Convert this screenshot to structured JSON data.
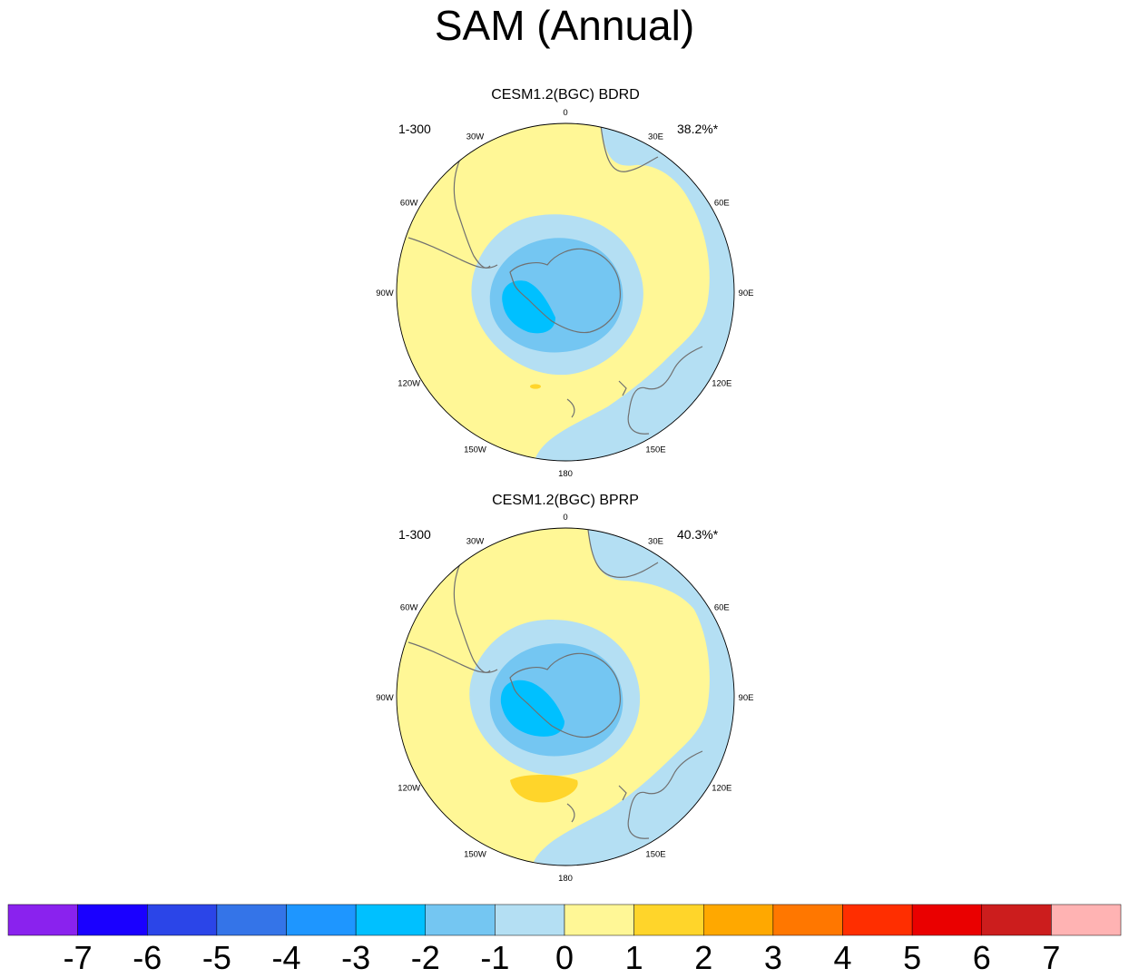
{
  "title": "SAM (Annual)",
  "panels": [
    {
      "title": "CESM1.2(BGC) BDRD",
      "left_label": "1-300",
      "right_label": "38.2%*",
      "lon_labels": [
        "0",
        "30E",
        "60E",
        "90E",
        "120E",
        "150E",
        "180",
        "150W",
        "120W",
        "90W",
        "60W",
        "30W"
      ],
      "positive_blob": "small"
    },
    {
      "title": "CESM1.2(BGC) BPRP",
      "left_label": "1-300",
      "right_label": "40.3%*",
      "lon_labels": [
        "0",
        "30E",
        "60E",
        "90E",
        "120E",
        "150E",
        "180",
        "150W",
        "120W",
        "90W",
        "60W",
        "30W"
      ],
      "positive_blob": "large"
    }
  ],
  "colorbar": {
    "levels": [
      "-7",
      "-6",
      "-5",
      "-4",
      "-3",
      "-2",
      "-1",
      "0",
      "1",
      "2",
      "3",
      "4",
      "5",
      "6",
      "7"
    ],
    "colors": [
      "#8a22ee",
      "#1a00ff",
      "#2b45e8",
      "#3474e8",
      "#1e96ff",
      "#00c0ff",
      "#74c6f2",
      "#b4dff3",
      "#fff796",
      "#ffd52a",
      "#ffa800",
      "#ff7700",
      "#ff2e00",
      "#ea0000",
      "#cc1d1d",
      "#ffb3b3"
    ]
  },
  "colors": {
    "ocean_yellow": "#fff796",
    "light_blue": "#b4dff3",
    "mid_blue": "#74c6f2",
    "cyan": "#00c0ff",
    "gold": "#ffd52a",
    "coast": "#707070"
  }
}
